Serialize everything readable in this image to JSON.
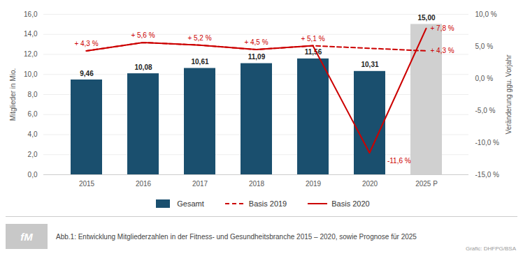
{
  "chart_data": {
    "type": "bar",
    "title": "Abb.1: Entwicklung Mitgliederzahlen in der Fitness- und Gesundheitsbranche 2015 – 2020, sowie Prognose für 2025",
    "caption": "Grafic: DHFPG/BSA",
    "logo": "fM",
    "categories": [
      "2015",
      "2016",
      "2017",
      "2018",
      "2019",
      "2020",
      "2025 P"
    ],
    "ylabel": "Mitglieder in Mio.",
    "y2label": "Veränderung ggu. Vorjahr",
    "ylim": [
      0,
      16
    ],
    "yticks": [
      {
        "value": 0,
        "label": "0,0"
      },
      {
        "value": 2,
        "label": "2,0"
      },
      {
        "value": 4,
        "label": "4,0"
      },
      {
        "value": 6,
        "label": "6,0"
      },
      {
        "value": 8,
        "label": "8,0"
      },
      {
        "value": 10,
        "label": "10,0"
      },
      {
        "value": 12,
        "label": "12,0"
      },
      {
        "value": 14,
        "label": "14,0"
      },
      {
        "value": 16,
        "label": "16,0"
      }
    ],
    "y2lim": [
      -15,
      10
    ],
    "y2ticks": [
      {
        "value": -15,
        "label": "-15,0 %"
      },
      {
        "value": -10,
        "label": "-10,0 %"
      },
      {
        "value": -5,
        "label": "-5,0 %"
      },
      {
        "value": 0,
        "label": "0,0 %"
      },
      {
        "value": 5,
        "label": "5,0 %"
      },
      {
        "value": 10,
        "label": "10,0 %"
      }
    ],
    "grid": true,
    "legend": "bottom",
    "series": [
      {
        "name": "Gesamt",
        "type": "bar",
        "color": "#1a4f6e",
        "colors": [
          "#1a4f6e",
          "#1a4f6e",
          "#1a4f6e",
          "#1a4f6e",
          "#1a4f6e",
          "#1a4f6e",
          "#d0d0d0"
        ],
        "values": [
          9.46,
          10.08,
          10.61,
          11.09,
          11.56,
          10.31,
          15.0
        ],
        "data_labels": true,
        "value_labels": [
          "9,46",
          "10,08",
          "10,61",
          "11,09",
          "11,56",
          "10,31",
          "15,00"
        ]
      },
      {
        "name": "Basis 2019",
        "type": "line",
        "axis": "y2",
        "color": "#cc0000",
        "line_style": "dashed",
        "x": [
          "2015",
          "2016",
          "2017",
          "2018",
          "2019",
          "2025 P"
        ],
        "values": [
          4.3,
          5.6,
          5.2,
          4.5,
          5.1,
          4.3
        ]
      },
      {
        "name": "Basis 2020",
        "type": "line",
        "axis": "y2",
        "color": "#cc0000",
        "line_style": "solid",
        "values": [
          4.3,
          5.6,
          5.2,
          4.5,
          5.1,
          -11.6,
          7.8
        ]
      }
    ],
    "annotations": [
      {
        "x": "2015",
        "y": 4.3,
        "text": "+ 4,3 %",
        "color": "#cc0000"
      },
      {
        "x": "2016",
        "y": 5.6,
        "text": "+ 5,6 %",
        "color": "#cc0000"
      },
      {
        "x": "2017",
        "y": 5.2,
        "text": "+ 5,2 %",
        "color": "#cc0000"
      },
      {
        "x": "2018",
        "y": 4.5,
        "text": "+ 4,5 %",
        "color": "#cc0000"
      },
      {
        "x": "2019",
        "y": 5.1,
        "text": "+ 5,1 %",
        "color": "#cc0000"
      },
      {
        "x": "2020",
        "y": -11.6,
        "text": "-11,6 %",
        "color": "#cc0000"
      },
      {
        "x": "2025 P",
        "y": 7.8,
        "text": "+ 7,8 %",
        "color": "#cc0000"
      },
      {
        "x": "2025 P",
        "y": 4.3,
        "text": "+ 4,3 %",
        "color": "#cc0000"
      }
    ]
  }
}
